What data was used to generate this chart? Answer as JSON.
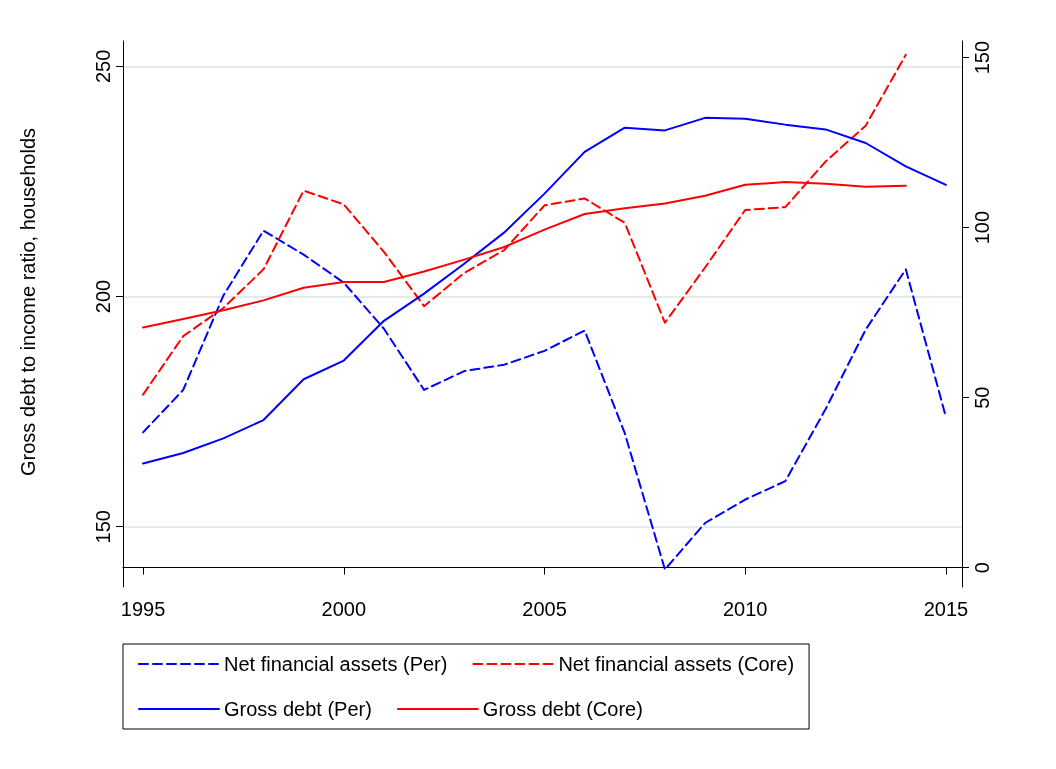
{
  "chart_data": {
    "type": "line",
    "x": [
      1995,
      1996,
      1997,
      1998,
      1999,
      2000,
      2001,
      2002,
      2003,
      2004,
      2005,
      2006,
      2007,
      2008,
      2009,
      2010,
      2011,
      2012,
      2013,
      2014,
      2015
    ],
    "series": [
      {
        "name": "Net financial assets (Per)",
        "color": "#0000ff",
        "line_style": "dashed",
        "values": [
          170.5,
          179.7,
          200.2,
          214.3,
          209.1,
          203.0,
          193.0,
          179.7,
          183.8,
          185.2,
          188.2,
          192.6,
          170.3,
          140.7,
          150.8,
          155.9,
          159.9,
          175.5,
          192.8,
          205.9,
          173.8
        ]
      },
      {
        "name": "Net financial assets (Core)",
        "color": "#ff0000",
        "line_style": "dashed",
        "values": [
          178.7,
          191.4,
          197.5,
          205.9,
          223.0,
          220.0,
          209.7,
          197.9,
          205.1,
          210.1,
          219.8,
          221.3,
          216.0,
          194.3,
          206.3,
          218.8,
          219.4,
          229.3,
          237.1,
          252.5,
          null
        ]
      },
      {
        "name": "Gross debt (Per)",
        "color": "#0000ff",
        "line_style": "solid",
        "axis": "y2",
        "values": [
          30.6,
          33.7,
          38.0,
          43.4,
          55.4,
          60.9,
          72.6,
          80.6,
          89.4,
          98.6,
          110.0,
          122.3,
          129.4,
          128.6,
          132.3,
          132.0,
          130.3,
          128.9,
          124.9,
          118.0,
          112.6
        ]
      },
      {
        "name": "Gross debt (Core)",
        "color": "#ff0000",
        "line_style": "solid",
        "axis": "y2",
        "values": [
          70.6,
          73.1,
          75.7,
          78.6,
          82.3,
          84.0,
          84.0,
          87.1,
          90.6,
          94.3,
          99.4,
          104.0,
          105.7,
          107.1,
          109.4,
          112.6,
          113.4,
          112.9,
          112.0,
          112.3,
          null
        ]
      }
    ],
    "annotations": [
      "Gross debt to income ratio, households"
    ],
    "xlim": [
      1994.5,
      2015.4
    ],
    "xticks": [
      1995,
      2000,
      2005,
      2010,
      2015
    ],
    "ylim": [
      136.9,
      255.5
    ],
    "yticks": [
      150,
      200,
      250
    ],
    "y2lim": [
      -5.7,
      154.9
    ],
    "y2ticks": [
      0,
      50,
      100,
      150
    ],
    "grid": "y",
    "legend": "bottom",
    "marker": "none"
  }
}
